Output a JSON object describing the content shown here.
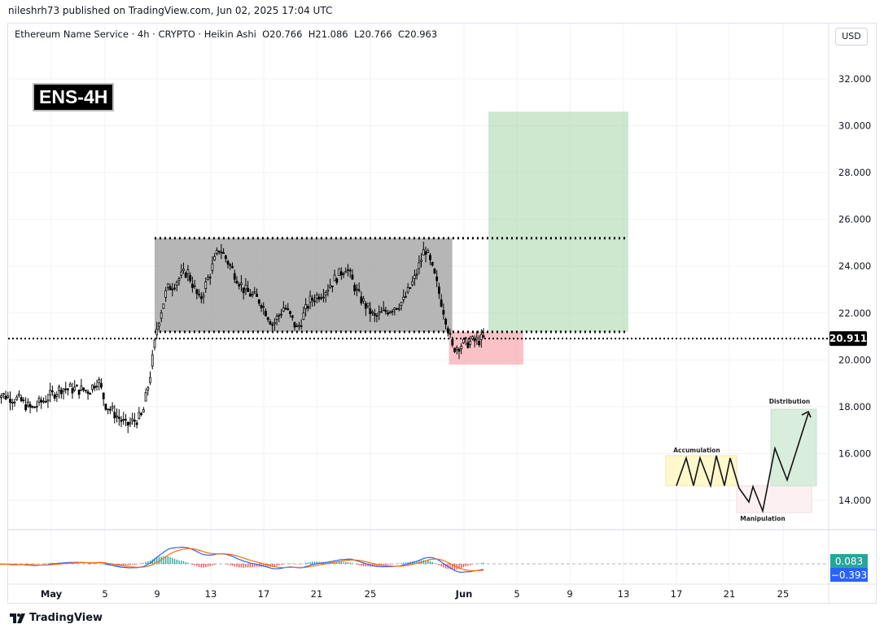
{
  "header": {
    "published": "nileshrh73 published on TradingView.com, Jun 02, 2025 17:04 UTC"
  },
  "legend": {
    "symbol": "Ethereum Name Service · 4h · CRYPTO · Heikin Ashi",
    "o": "O20.766",
    "h": "H21.086",
    "l": "L20.766",
    "c": "C20.963"
  },
  "currency_button": "USD",
  "tag": "ENS-4H",
  "footer": {
    "brand": "TradingView"
  },
  "chart_data": {
    "type": "candlestick",
    "yticks": [
      "32.000",
      "30.000",
      "28.000",
      "26.000",
      "24.000",
      "22.000",
      "20.000",
      "18.000",
      "16.000",
      "14.000"
    ],
    "ylim": [
      13.2,
      33.2
    ],
    "xticks": [
      "May",
      "5",
      "9",
      "13",
      "17",
      "21",
      "25",
      "Jun",
      "5",
      "9",
      "13",
      "17",
      "21",
      "25"
    ],
    "last_price": {
      "value": "20.911",
      "color": "#000000"
    },
    "price_path": [
      [
        "04-27 18",
        18.6
      ],
      [
        "04-29 14",
        18.3
      ],
      [
        "04-30 12",
        17.9
      ],
      [
        "05-01 18",
        18.8
      ],
      [
        "05-03 21",
        18.7
      ],
      [
        "05-04 12",
        19.2
      ],
      [
        "05-05 02",
        18.1
      ],
      [
        "05-06 15",
        17.2
      ],
      [
        "05-07 20",
        17.6
      ],
      [
        "05-08 11",
        19.5
      ],
      [
        "05-08 23",
        21.5
      ],
      [
        "05-09 16",
        23.0
      ],
      [
        "05-11 05",
        23.8
      ],
      [
        "05-12 03",
        22.5
      ],
      [
        "05-13 15",
        24.8
      ],
      [
        "05-15 11",
        23.0
      ],
      [
        "05-16 17",
        22.5
      ],
      [
        "05-17 15",
        21.5
      ],
      [
        "05-18 12",
        22.3
      ],
      [
        "05-19 11",
        21.3
      ],
      [
        "05-20 09",
        22.5
      ],
      [
        "05-21 14",
        23.0
      ],
      [
        "05-23 03",
        24.0
      ],
      [
        "05-24 00",
        22.8
      ],
      [
        "05-25 06",
        21.8
      ],
      [
        "05-26 11",
        22.2
      ],
      [
        "05-27 10",
        22.5
      ],
      [
        "05-28 07",
        23.5
      ],
      [
        "05-29 01",
        24.8
      ],
      [
        "05-29 19",
        23.5
      ],
      [
        "05-30 14",
        21.8
      ],
      [
        "05-31 02",
        20.5
      ],
      [
        "05-31 23",
        20.7
      ],
      [
        "06-02 12",
        20.9
      ]
    ],
    "zones": [
      {
        "name": "range",
        "from": "05-08 18",
        "to": "05-31 02",
        "low": 21.2,
        "high": 25.2,
        "color": "#9e9e9e"
      },
      {
        "name": "target",
        "from": "06-02 19",
        "to": "06-13 07",
        "low": 21.2,
        "high": 30.6,
        "color": "#a5d6a7"
      },
      {
        "name": "stop",
        "from": "05-30 20",
        "to": "06-05 10",
        "low": 19.8,
        "high": 21.2,
        "color": "#f7a1a8"
      }
    ],
    "levels": [
      25.2,
      21.2,
      20.911
    ],
    "macd": {
      "macd": "0.083",
      "signal": "-0.393",
      "macd_color": "#26a69a",
      "signal_color": "#2962ff"
    },
    "inset": {
      "labels": [
        "Accumulation",
        "Manipulation",
        "Distribution"
      ]
    }
  }
}
